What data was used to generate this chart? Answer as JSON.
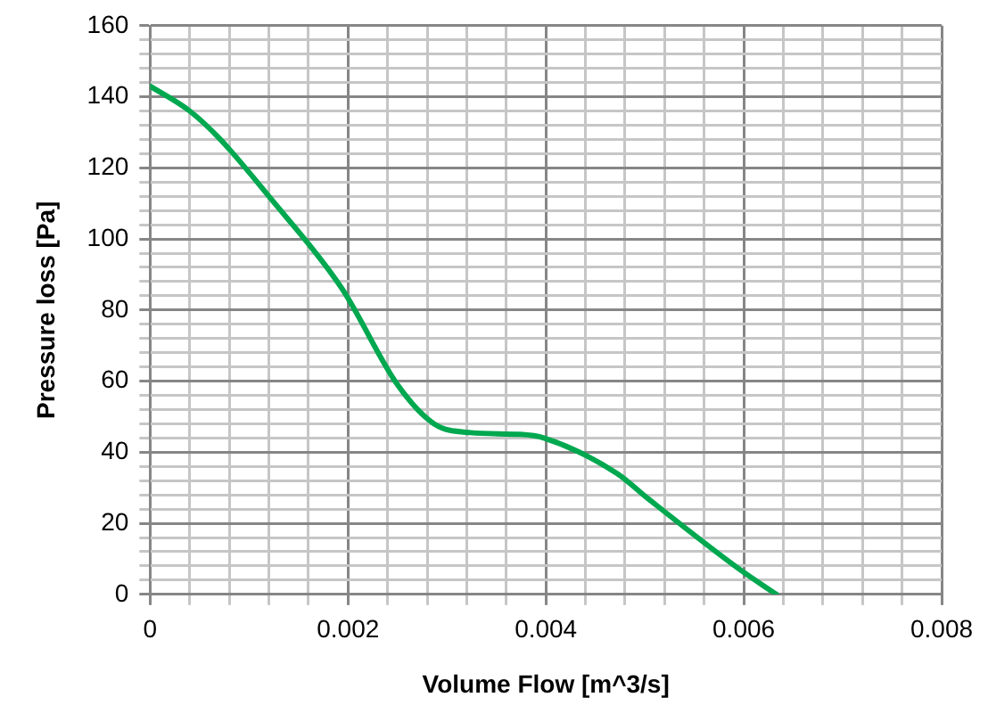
{
  "chart_data": {
    "type": "line",
    "xlabel": "Volume Flow [m^3/s]",
    "ylabel": "Pressure loss [Pa]",
    "x": [
      0,
      0.0004,
      0.00071,
      0.0012,
      0.00194,
      0.0025,
      0.00287,
      0.00324,
      0.00374,
      0.00398,
      0.00472,
      0.00503,
      0.00596,
      0.00633
    ],
    "series": [
      {
        "color": "#00a84f",
        "values": [
          143,
          136,
          128,
          112,
          86,
          59,
          48,
          45.5,
          45,
          44,
          34,
          27,
          7,
          0
        ]
      }
    ],
    "xlim": [
      0,
      0.008
    ],
    "xticks": [
      0,
      {
        "value": 0.0004,
        "label": null
      },
      {
        "value": 0.0008,
        "label": null
      },
      {
        "value": 0.0012,
        "label": null
      },
      {
        "value": 0.0016,
        "label": null
      },
      0.002,
      {
        "value": 0.0024,
        "label": null
      },
      {
        "value": 0.0028,
        "label": null
      },
      {
        "value": 0.0032,
        "label": null
      },
      {
        "value": 0.0036,
        "label": null
      },
      0.004,
      {
        "value": 0.0044,
        "label": null
      },
      {
        "value": 0.0048,
        "label": null
      },
      {
        "value": 0.0052,
        "label": null
      },
      {
        "value": 0.0056,
        "label": null
      },
      0.006,
      {
        "value": 0.0064,
        "label": null
      },
      {
        "value": 0.0068,
        "label": null
      },
      {
        "value": 0.0072,
        "label": null
      },
      {
        "value": 0.0076,
        "label": null
      },
      0.008
    ],
    "ylim": [
      0,
      160
    ],
    "yticks": [
      0,
      {
        "value": 4,
        "label": null
      },
      {
        "value": 8,
        "label": null
      },
      {
        "value": 12,
        "label": null
      },
      {
        "value": 16,
        "label": null
      },
      20,
      {
        "value": 24,
        "label": null
      },
      {
        "value": 28,
        "label": null
      },
      {
        "value": 32,
        "label": null
      },
      {
        "value": 36,
        "label": null
      },
      40,
      {
        "value": 44,
        "label": null
      },
      {
        "value": 48,
        "label": null
      },
      {
        "value": 52,
        "label": null
      },
      {
        "value": 56,
        "label": null
      },
      60,
      {
        "value": 64,
        "label": null
      },
      {
        "value": 68,
        "label": null
      },
      {
        "value": 72,
        "label": null
      },
      {
        "value": 76,
        "label": null
      },
      80,
      {
        "value": 84,
        "label": null
      },
      {
        "value": 88,
        "label": null
      },
      {
        "value": 92,
        "label": null
      },
      {
        "value": 96,
        "label": null
      },
      100,
      {
        "value": 104,
        "label": null
      },
      {
        "value": 108,
        "label": null
      },
      {
        "value": 112,
        "label": null
      },
      {
        "value": 116,
        "label": null
      },
      120,
      {
        "value": 124,
        "label": null
      },
      {
        "value": 128,
        "label": null
      },
      {
        "value": 132,
        "label": null
      },
      {
        "value": 136,
        "label": null
      },
      140,
      {
        "value": 144,
        "label": null
      },
      {
        "value": 148,
        "label": null
      },
      {
        "value": 152,
        "label": null
      },
      {
        "value": 156,
        "label": null
      },
      160
    ],
    "grid": true,
    "legend": false,
    "marker": "none",
    "line_style": "solid"
  }
}
